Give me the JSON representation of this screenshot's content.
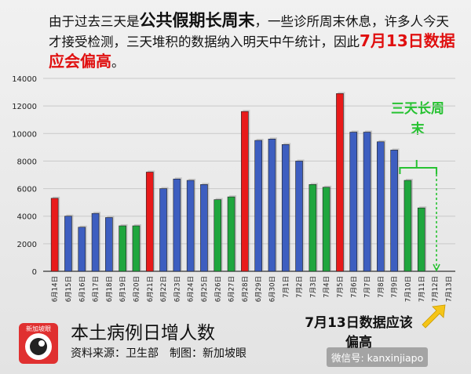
{
  "note": {
    "part1": "由于过去三天是",
    "part2": "公共假期长周末",
    "part3": "，一些诊所周末休息，许多人今天才接受检测，三天堆积的数据纳入明天中午统计，因此",
    "part4": "7月13日数据应会偏高",
    "part5": "。"
  },
  "footer": {
    "title": "本土病例日增人数",
    "source": "资料来源：卫生部　制图：新加坡眼",
    "callout": "7月13日数据应该偏高",
    "logo_text": "新加坡眼",
    "wechat": "微信号: kanxinjiapo"
  },
  "weekend_label": "三天长周末",
  "colors": {
    "red": "#e81a1a",
    "blue": "#3d5ec0",
    "green": "#1fa63e",
    "callout_arrow": "#f5c518",
    "weekend": "#27c232"
  },
  "chart_data": {
    "type": "bar",
    "categories": [
      "6月14日",
      "6月15日",
      "6月16日",
      "6月17日",
      "6月18日",
      "6月19日",
      "6月20日",
      "6月21日",
      "6月22日",
      "6月23日",
      "6月24日",
      "6月25日",
      "6月26日",
      "6月27日",
      "6月28日",
      "6月29日",
      "6月30日",
      "7月1日",
      "7月2日",
      "7月3日",
      "7月4日",
      "7月5日",
      "7月6日",
      "7月7日",
      "7月8日",
      "7月9日",
      "7月10日",
      "7月11日",
      "7月12日",
      "7月13日"
    ],
    "values": [
      5300,
      4000,
      3200,
      4200,
      3900,
      3300,
      3300,
      7200,
      6000,
      6700,
      6600,
      6300,
      5200,
      5400,
      11600,
      9500,
      9600,
      9200,
      8000,
      6300,
      6100,
      12900,
      10100,
      10100,
      9400,
      8800,
      6600,
      4600,
      null,
      null
    ],
    "bar_colors": [
      "red",
      "blue",
      "blue",
      "blue",
      "blue",
      "green",
      "green",
      "red",
      "blue",
      "blue",
      "blue",
      "blue",
      "green",
      "green",
      "red",
      "blue",
      "blue",
      "blue",
      "blue",
      "green",
      "green",
      "red",
      "blue",
      "blue",
      "blue",
      "blue",
      "green",
      "green",
      "none",
      "none"
    ],
    "ylim": [
      0,
      14000
    ],
    "yticks": [
      0,
      2000,
      4000,
      6000,
      8000,
      10000,
      12000,
      14000
    ],
    "title": "本土病例日增人数"
  }
}
